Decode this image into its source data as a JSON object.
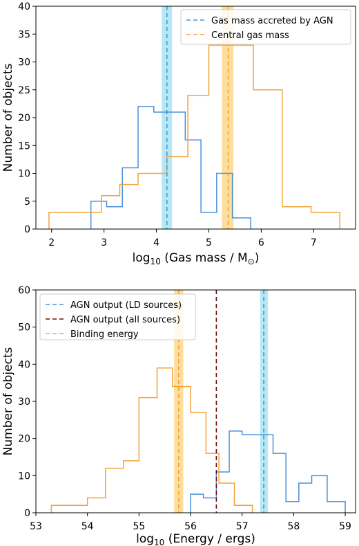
{
  "chart_data": [
    {
      "type": "histogram",
      "xlabel_main": "log",
      "xlabel_sub": "10",
      "xlabel_rest": " (Gas mass / M",
      "xlabel_sym": "⊙",
      "xlabel_end": ")",
      "ylabel": "Number of objects",
      "xlim": [
        1.7,
        7.8
      ],
      "ylim": [
        0,
        40
      ],
      "xticks": [
        2,
        3,
        4,
        5,
        6,
        7
      ],
      "yticks": [
        0,
        5,
        10,
        15,
        20,
        25,
        30,
        35,
        40
      ],
      "legend_position": "top-right",
      "colors": {
        "blue": "#4a90d9",
        "orange": "#f5a23a",
        "cyan_band": "#a9e4f2",
        "orange_band": "#fcd98c"
      },
      "series": [
        {
          "name": "Gas mass accreted by AGN",
          "color": "#4a90d9",
          "edges": [
            2.75,
            3.05,
            3.35,
            3.65,
            3.95,
            4.25,
            4.55,
            4.85,
            5.15,
            5.45,
            5.8
          ],
          "values": [
            5,
            4,
            11,
            22,
            21,
            21,
            16,
            3,
            10,
            2
          ]
        },
        {
          "name": "Central gas mass",
          "color": "#f5a23a",
          "edges": [
            1.95,
            2.95,
            3.3,
            3.65,
            4.2,
            4.6,
            5.0,
            5.4,
            5.85,
            6.4,
            6.95,
            7.5
          ],
          "values": [
            3,
            6,
            8,
            10,
            13,
            24,
            33,
            33,
            25,
            4,
            3
          ]
        }
      ],
      "vlines": [
        {
          "x": 4.2,
          "color": "#4a90d9",
          "band": [
            4.1,
            4.3
          ],
          "band_color": "#a9e4f2"
        },
        {
          "x": 5.37,
          "color": "#f5a23a",
          "band": [
            5.25,
            5.47
          ],
          "band_color": "#fcd98c"
        }
      ]
    },
    {
      "type": "histogram",
      "xlabel_main": "log",
      "xlabel_sub": "10",
      "xlabel_rest": " (Energy / ergs)",
      "ylabel": "Number of objects",
      "xlim": [
        53.0,
        59.2
      ],
      "ylim": [
        0,
        60
      ],
      "xticks": [
        53,
        54,
        55,
        56,
        57,
        58,
        59
      ],
      "yticks": [
        0,
        10,
        20,
        30,
        40,
        50,
        60
      ],
      "legend_position": "top-left",
      "colors": {
        "blue": "#4a90d9",
        "darkred": "#6b0f0f",
        "orange": "#f5a23a",
        "cyan_band": "#a9e4f2",
        "orange_band": "#fcd98c"
      },
      "series": [
        {
          "name": "AGN output (LD sources)",
          "color": "#4a90d9",
          "edges": [
            56.0,
            56.25,
            56.5,
            56.75,
            57.0,
            57.3,
            57.6,
            57.85,
            58.1,
            58.35,
            58.65,
            59.0
          ],
          "values": [
            5,
            4,
            11,
            22,
            21,
            21,
            16,
            3,
            8,
            10,
            3
          ]
        },
        {
          "name": "AGN output (all sources)",
          "color": "#6b0f0f",
          "edges": [],
          "values": []
        },
        {
          "name": "Binding energy",
          "color": "#f5a23a",
          "edges": [
            53.3,
            54.0,
            54.35,
            54.7,
            55.0,
            55.35,
            55.65,
            56.0,
            56.3,
            56.55,
            56.85,
            57.2
          ],
          "values": [
            2,
            4,
            12,
            14,
            31,
            39,
            34,
            27,
            16,
            8,
            2
          ]
        }
      ],
      "vlines": [
        {
          "x": 55.77,
          "color": "#f5a23a",
          "band": [
            55.68,
            55.86
          ],
          "band_color": "#fcd98c"
        },
        {
          "x": 56.5,
          "color": "#6b0f0f"
        },
        {
          "x": 57.42,
          "color": "#4a90d9",
          "band": [
            57.35,
            57.5
          ],
          "band_color": "#a9e4f2"
        }
      ]
    }
  ]
}
